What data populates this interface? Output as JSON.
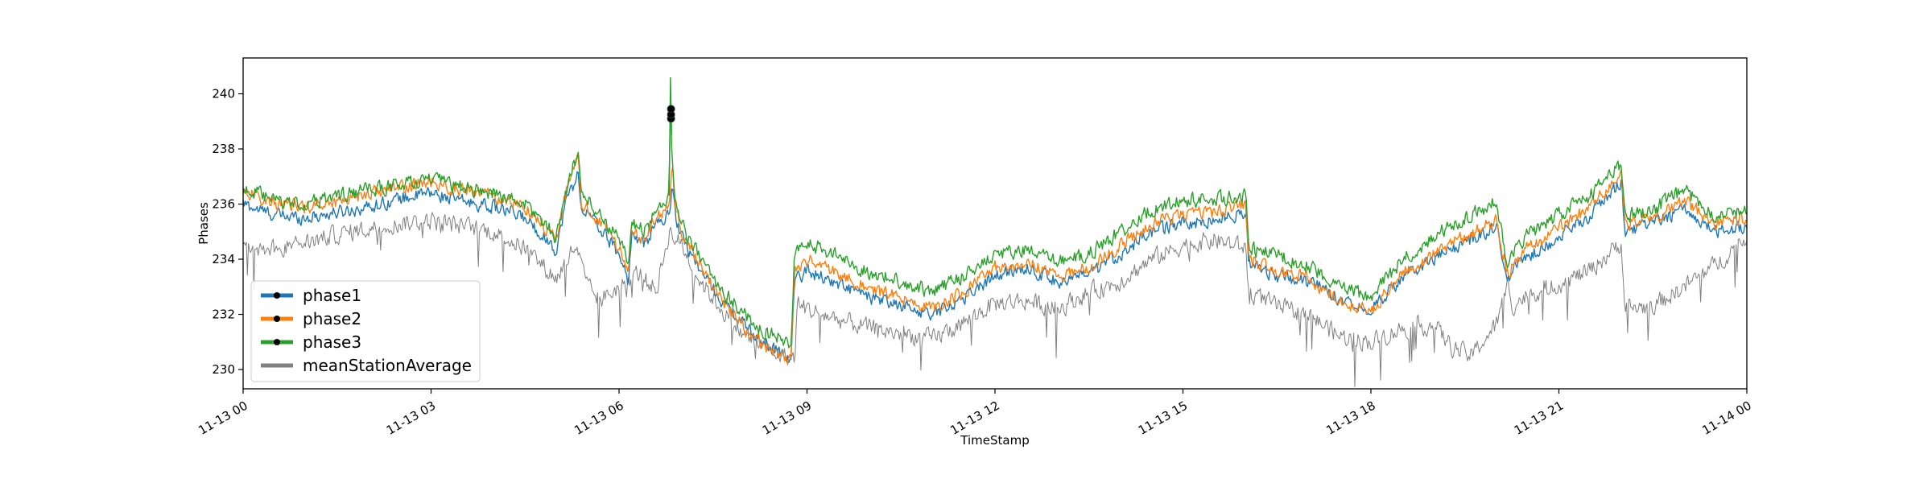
{
  "chart_data": {
    "type": "line",
    "xlabel": "TimeStamp",
    "ylabel": "Phases",
    "xlim_hours": [
      0,
      24
    ],
    "ylim": [
      229.3,
      241.3
    ],
    "x_ticks": [
      {
        "hour": 0,
        "label": "11-13 00"
      },
      {
        "hour": 3,
        "label": "11-13 03"
      },
      {
        "hour": 6,
        "label": "11-13 06"
      },
      {
        "hour": 9,
        "label": "11-13 09"
      },
      {
        "hour": 12,
        "label": "11-13 12"
      },
      {
        "hour": 15,
        "label": "11-13 15"
      },
      {
        "hour": 18,
        "label": "11-13 18"
      },
      {
        "hour": 21,
        "label": "11-13 21"
      },
      {
        "hour": 24,
        "label": "11-14 00"
      }
    ],
    "y_ticks": [
      230,
      232,
      234,
      236,
      238,
      240
    ],
    "legend_placement": "lower-left",
    "grid": false,
    "series": [
      {
        "name": "phase1",
        "color": "#1f77b4",
        "noise": 0.22,
        "x": [
          0,
          0.5,
          1,
          1.5,
          2,
          2.5,
          3,
          3.5,
          4,
          4.5,
          4.9,
          5.0,
          5.15,
          5.35,
          5.4,
          5.7,
          6.0,
          6.15,
          6.2,
          6.4,
          6.6,
          6.8,
          6.85,
          6.9,
          7.0,
          7.3,
          7.6,
          8.0,
          8.3,
          8.6,
          8.75,
          8.8,
          9.0,
          9.5,
          10.0,
          10.5,
          11.0,
          11.5,
          12.0,
          12.5,
          13.0,
          13.5,
          14.0,
          14.5,
          15.0,
          15.5,
          16.0,
          16.05,
          16.5,
          17.0,
          17.5,
          18.0,
          18.5,
          19.0,
          19.5,
          20.0,
          20.2,
          20.25,
          20.5,
          21.0,
          21.5,
          22.0,
          22.05,
          22.5,
          23.0,
          23.5,
          24.0
        ],
        "y": [
          236.0,
          235.6,
          235.5,
          235.7,
          235.9,
          236.2,
          236.4,
          236.1,
          235.9,
          235.5,
          234.6,
          234.3,
          236.1,
          237.1,
          235.9,
          235.1,
          234.2,
          233.2,
          234.9,
          234.5,
          235.3,
          235.6,
          236.8,
          235.6,
          234.8,
          233.6,
          232.6,
          231.6,
          231.0,
          230.6,
          230.4,
          233.2,
          233.6,
          233.1,
          232.6,
          232.3,
          232.0,
          232.6,
          233.4,
          233.7,
          233.2,
          233.4,
          234.2,
          235.0,
          235.3,
          235.4,
          235.7,
          233.9,
          233.4,
          233.2,
          232.6,
          232.2,
          233.3,
          234.0,
          234.6,
          235.2,
          233.2,
          233.6,
          234.1,
          234.8,
          235.6,
          236.8,
          235.0,
          235.3,
          235.8,
          235.0,
          235.2
        ]
      },
      {
        "name": "phase2",
        "color": "#ff7f0e",
        "noise": 0.22,
        "x": [
          0,
          0.5,
          1,
          1.5,
          2,
          2.5,
          3,
          3.5,
          4,
          4.5,
          4.9,
          5.0,
          5.15,
          5.35,
          5.4,
          5.7,
          6.0,
          6.15,
          6.2,
          6.4,
          6.6,
          6.8,
          6.85,
          6.9,
          7.0,
          7.3,
          7.6,
          8.0,
          8.3,
          8.6,
          8.75,
          8.8,
          9.0,
          9.5,
          10.0,
          10.5,
          11.0,
          11.5,
          12.0,
          12.5,
          13.0,
          13.5,
          14.0,
          14.5,
          15.0,
          15.5,
          16.0,
          16.05,
          16.5,
          17.0,
          17.5,
          18.0,
          18.5,
          19.0,
          19.5,
          20.0,
          20.2,
          20.25,
          20.5,
          21.0,
          21.5,
          22.0,
          22.05,
          22.5,
          23.0,
          23.5,
          24.0
        ],
        "y": [
          236.5,
          236.0,
          235.9,
          236.1,
          236.4,
          236.6,
          236.8,
          236.5,
          236.3,
          235.9,
          235.0,
          234.7,
          236.4,
          237.7,
          236.1,
          235.3,
          234.4,
          233.5,
          235.2,
          234.7,
          235.5,
          235.8,
          237.3,
          236.0,
          235.0,
          233.7,
          232.7,
          231.5,
          230.9,
          230.5,
          230.4,
          233.5,
          234.0,
          233.5,
          232.9,
          232.6,
          232.2,
          232.8,
          233.7,
          233.9,
          233.4,
          233.7,
          234.5,
          235.3,
          235.6,
          235.7,
          236.0,
          234.0,
          233.6,
          233.3,
          232.5,
          232.1,
          233.5,
          234.2,
          234.8,
          235.4,
          233.3,
          233.8,
          234.4,
          235.1,
          235.9,
          237.1,
          235.3,
          235.5,
          236.1,
          235.3,
          235.5
        ]
      },
      {
        "name": "phase3",
        "color": "#2ca02c",
        "noise": 0.24,
        "x": [
          0,
          0.5,
          1,
          1.5,
          2,
          2.5,
          3,
          3.5,
          4,
          4.5,
          4.9,
          5.0,
          5.15,
          5.35,
          5.4,
          5.7,
          6.0,
          6.15,
          6.2,
          6.4,
          6.6,
          6.8,
          6.82,
          6.83,
          6.85,
          6.9,
          7.0,
          7.3,
          7.6,
          8.0,
          8.3,
          8.6,
          8.75,
          8.8,
          9.0,
          9.5,
          10.0,
          10.5,
          11.0,
          11.5,
          12.0,
          12.5,
          13.0,
          13.5,
          14.0,
          14.5,
          15.0,
          15.5,
          16.0,
          16.05,
          16.5,
          17.0,
          17.5,
          18.0,
          18.5,
          19.0,
          19.5,
          20.0,
          20.2,
          20.25,
          20.5,
          21.0,
          21.5,
          22.0,
          22.05,
          22.5,
          23.0,
          23.5,
          24.0
        ],
        "y": [
          236.6,
          236.1,
          236.0,
          236.3,
          236.5,
          236.7,
          236.9,
          236.6,
          236.4,
          236.0,
          235.1,
          234.8,
          236.5,
          237.9,
          236.4,
          235.6,
          234.7,
          233.8,
          235.4,
          235.0,
          235.8,
          236.3,
          240.6,
          238.5,
          237.6,
          236.2,
          235.2,
          234.0,
          233.0,
          232.0,
          231.4,
          231.1,
          230.9,
          234.1,
          234.6,
          234.1,
          233.5,
          233.2,
          232.8,
          233.4,
          234.2,
          234.3,
          233.9,
          234.2,
          235.0,
          235.8,
          236.1,
          236.2,
          236.3,
          234.4,
          234.1,
          233.8,
          233.0,
          232.6,
          234.0,
          234.8,
          235.5,
          236.1,
          233.6,
          234.2,
          234.9,
          235.6,
          236.3,
          237.5,
          235.6,
          235.8,
          236.5,
          235.6,
          235.8
        ]
      },
      {
        "name": "meanStationAverage",
        "color": "#808080",
        "noise": 0.3,
        "x": [
          0,
          0.5,
          1,
          1.5,
          2,
          2.5,
          3,
          3.5,
          4,
          4.5,
          4.9,
          5.0,
          5.3,
          5.5,
          5.7,
          6.0,
          6.3,
          6.6,
          6.8,
          7.0,
          7.3,
          7.6,
          8.0,
          8.5,
          8.8,
          8.85,
          9.0,
          9.5,
          10.0,
          10.5,
          11.0,
          11.5,
          12.0,
          12.5,
          13.0,
          13.5,
          14.0,
          14.5,
          15.0,
          15.5,
          16.0,
          16.05,
          16.5,
          17.0,
          17.5,
          18.0,
          18.5,
          19.0,
          19.3,
          19.6,
          20.0,
          20.2,
          20.25,
          20.5,
          21.0,
          21.5,
          22.0,
          22.05,
          22.5,
          23.0,
          23.5,
          24.0
        ],
        "y": [
          234.4,
          234.4,
          234.6,
          234.9,
          235.1,
          235.3,
          235.4,
          235.2,
          235.0,
          234.4,
          233.5,
          233.3,
          234.5,
          233.0,
          232.5,
          233.0,
          233.5,
          232.9,
          235.0,
          234.5,
          233.2,
          232.3,
          231.2,
          230.6,
          230.4,
          232.4,
          232.2,
          231.8,
          231.5,
          231.3,
          231.1,
          231.7,
          232.4,
          232.5,
          232.2,
          232.8,
          233.2,
          234.0,
          234.5,
          234.7,
          234.4,
          232.8,
          232.3,
          232.0,
          231.2,
          231.0,
          231.5,
          231.6,
          230.8,
          230.5,
          231.6,
          233.2,
          232.3,
          232.7,
          233.1,
          233.6,
          234.6,
          232.2,
          232.3,
          233.0,
          233.8,
          234.8
        ]
      }
    ],
    "markers": [
      {
        "series": "phase1",
        "x": 6.83,
        "y": 239.1
      },
      {
        "series": "phase2",
        "x": 6.83,
        "y": 239.25
      },
      {
        "series": "phase3",
        "x": 6.83,
        "y": 239.45
      }
    ]
  }
}
